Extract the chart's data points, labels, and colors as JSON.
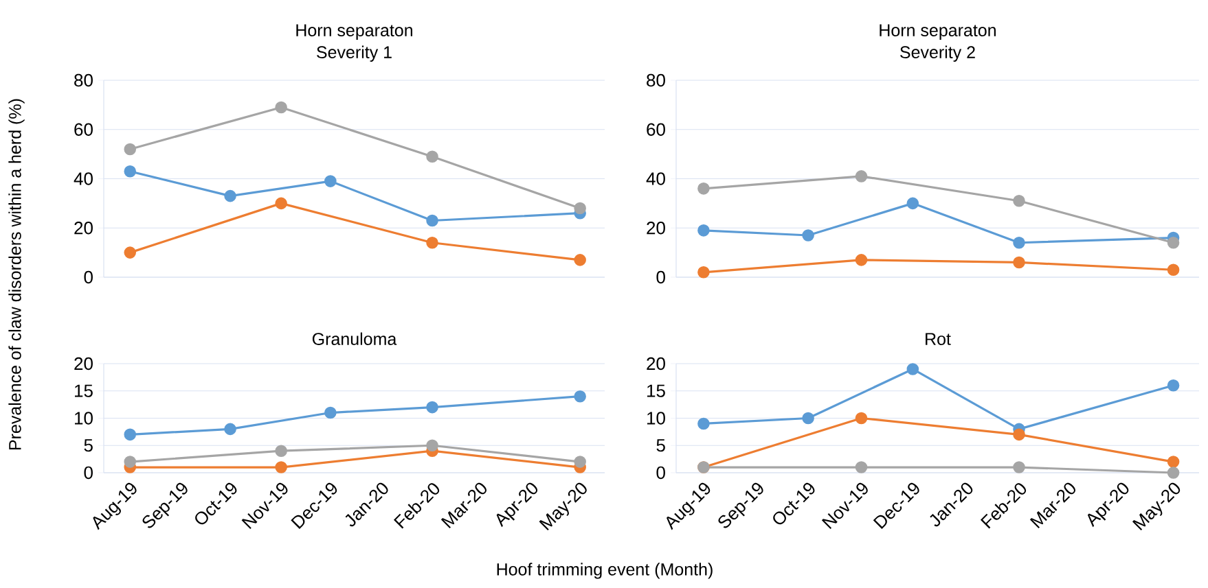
{
  "chart_data": [
    {
      "type": "line",
      "title": "Horn separaton",
      "subtitle": "Severity 1",
      "ylabel": "Prevalence of claw disorders within a herd (%)",
      "xlim": [
        "2019-07-16",
        "2020-05-16"
      ],
      "ylim": [
        0,
        80
      ],
      "yticks": [
        0,
        20,
        40,
        60,
        80
      ],
      "grid": "y",
      "marker": "circle",
      "tick_labels": "y",
      "series": [
        {
          "color": "#5b9bd5",
          "x": [
            "2019-08",
            "2019-10",
            "2019-12",
            "2020-02",
            "2020-05"
          ],
          "values": [
            43,
            33,
            39,
            23,
            26
          ]
        },
        {
          "color": "#ed7d31",
          "x": [
            "2019-08",
            "2019-11",
            "2020-02",
            "2020-05"
          ],
          "values": [
            10,
            30,
            14,
            7
          ]
        },
        {
          "color": "#a5a5a5",
          "x": [
            "2019-08",
            "2019-11",
            "2020-02",
            "2020-05"
          ],
          "values": [
            52,
            69,
            49,
            28
          ]
        }
      ]
    },
    {
      "type": "line",
      "title": "Horn separaton",
      "subtitle": "Severity 2",
      "xlim": [
        "2019-07-16",
        "2020-05-16"
      ],
      "ylim": [
        0,
        80
      ],
      "yticks": [
        0,
        20,
        40,
        60,
        80
      ],
      "grid": "y",
      "marker": "circle",
      "tick_labels": "y",
      "series": [
        {
          "color": "#5b9bd5",
          "x": [
            "2019-08",
            "2019-10",
            "2019-12",
            "2020-02",
            "2020-05"
          ],
          "values": [
            19,
            17,
            30,
            14,
            16
          ]
        },
        {
          "color": "#ed7d31",
          "x": [
            "2019-08",
            "2019-11",
            "2020-02",
            "2020-05"
          ],
          "values": [
            2,
            7,
            6,
            3
          ]
        },
        {
          "color": "#a5a5a5",
          "x": [
            "2019-08",
            "2019-11",
            "2020-02",
            "2020-05"
          ],
          "values": [
            36,
            41,
            31,
            14
          ]
        }
      ]
    },
    {
      "type": "line",
      "title": "Granuloma",
      "xlabel": "Hoof trimming event (Month)",
      "xlim": [
        "2019-07-16",
        "2020-05-16"
      ],
      "xticks": [
        {
          "value": "2019-08",
          "label": "Aug-19"
        },
        {
          "value": "2019-09",
          "label": "Sep-19"
        },
        {
          "value": "2019-10",
          "label": "Oct-19"
        },
        {
          "value": "2019-11",
          "label": "Nov-19"
        },
        {
          "value": "2019-12",
          "label": "Dec-19"
        },
        {
          "value": "2020-01",
          "label": "Jan-20"
        },
        {
          "value": "2020-02",
          "label": "Feb-20"
        },
        {
          "value": "2020-03",
          "label": "Mar-20"
        },
        {
          "value": "2020-04",
          "label": "Apr-20"
        },
        {
          "value": "2020-05",
          "label": "May-20"
        }
      ],
      "ylim": [
        0,
        20
      ],
      "yticks": [
        0,
        5,
        10,
        15,
        20
      ],
      "grid": "y",
      "marker": "circle",
      "series": [
        {
          "color": "#5b9bd5",
          "x": [
            "2019-08",
            "2019-10",
            "2019-12",
            "2020-02",
            "2020-05"
          ],
          "values": [
            7,
            8,
            11,
            12,
            14
          ]
        },
        {
          "color": "#ed7d31",
          "x": [
            "2019-08",
            "2019-11",
            "2020-02",
            "2020-05"
          ],
          "values": [
            1,
            1,
            4,
            1
          ]
        },
        {
          "color": "#a5a5a5",
          "x": [
            "2019-08",
            "2019-11",
            "2020-02",
            "2020-05"
          ],
          "values": [
            2,
            4,
            5,
            2
          ]
        }
      ]
    },
    {
      "type": "line",
      "title": "Rot",
      "xlim": [
        "2019-07-16",
        "2020-05-16"
      ],
      "xticks": [
        {
          "value": "2019-08",
          "label": "Aug-19"
        },
        {
          "value": "2019-09",
          "label": "Sep-19"
        },
        {
          "value": "2019-10",
          "label": "Oct-19"
        },
        {
          "value": "2019-11",
          "label": "Nov-19"
        },
        {
          "value": "2019-12",
          "label": "Dec-19"
        },
        {
          "value": "2020-01",
          "label": "Jan-20"
        },
        {
          "value": "2020-02",
          "label": "Feb-20"
        },
        {
          "value": "2020-03",
          "label": "Mar-20"
        },
        {
          "value": "2020-04",
          "label": "Apr-20"
        },
        {
          "value": "2020-05",
          "label": "May-20"
        }
      ],
      "ylim": [
        0,
        20
      ],
      "yticks": [
        0,
        5,
        10,
        15,
        20
      ],
      "grid": "y",
      "marker": "circle",
      "series": [
        {
          "color": "#5b9bd5",
          "x": [
            "2019-08",
            "2019-10",
            "2019-12",
            "2020-02",
            "2020-05"
          ],
          "values": [
            9,
            10,
            19,
            8,
            16
          ]
        },
        {
          "color": "#ed7d31",
          "x": [
            "2019-08",
            "2019-11",
            "2020-02",
            "2020-05"
          ],
          "values": [
            1,
            10,
            7,
            2
          ]
        },
        {
          "color": "#a5a5a5",
          "x": [
            "2019-08",
            "2019-11",
            "2020-02",
            "2020-05"
          ],
          "values": [
            1,
            1,
            1,
            0
          ]
        }
      ]
    }
  ]
}
